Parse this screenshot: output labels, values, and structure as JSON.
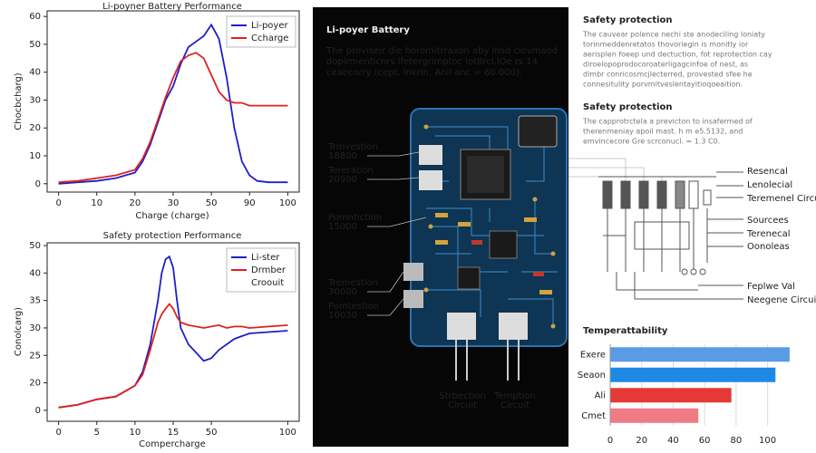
{
  "chart_data": [
    {
      "type": "line",
      "title": "Li-poyner Battery Performance",
      "xlabel": "Charge (charge)",
      "ylabel": "Chocbcharg)",
      "x": [
        0,
        5,
        10,
        15,
        20,
        22,
        24,
        26,
        28,
        30,
        32,
        34,
        36,
        38,
        40,
        42,
        44,
        46,
        48,
        50,
        52,
        55,
        60
      ],
      "series": [
        {
          "name": "Li-poyer",
          "color": "#1f1fc8",
          "values": [
            0,
            0.5,
            1,
            2,
            4,
            8,
            14,
            22,
            30,
            35,
            43,
            49,
            51,
            53,
            57,
            52,
            38,
            20,
            8,
            3,
            1,
            0.5,
            0.5
          ]
        },
        {
          "name": "Ccharge",
          "color": "#e02020",
          "values": [
            0.5,
            1,
            2,
            3,
            5,
            9,
            15,
            23,
            31,
            38,
            44,
            46,
            47,
            45,
            39,
            33,
            30,
            29,
            29,
            28,
            28,
            28,
            28
          ]
        }
      ],
      "xlim": [
        -3,
        63
      ],
      "ylim": [
        -3,
        62
      ],
      "xticks": [
        0,
        10,
        20,
        30,
        {
          "value": 40,
          "label": "50"
        },
        {
          "value": 50,
          "label": "90"
        },
        {
          "value": 60,
          "label": "100"
        }
      ],
      "yticks": [
        0,
        10,
        20,
        30,
        40,
        50,
        60
      ],
      "legend": "upper right"
    },
    {
      "type": "line",
      "title": "Safety protection Performance",
      "xlabel": "Compercharge",
      "ylabel": "Conolcarg)",
      "x": [
        0,
        5,
        10,
        15,
        20,
        22,
        24,
        26,
        27,
        28,
        29,
        30,
        31,
        32,
        34,
        36,
        38,
        40,
        42,
        44,
        46,
        48,
        50,
        55,
        60
      ],
      "series": [
        {
          "name": "Li-ster",
          "color": "#1f1fc8",
          "values": [
            1,
            2,
            4,
            5,
            9,
            14,
            24,
            40,
            50,
            55,
            56,
            52,
            40,
            30,
            24,
            21,
            18,
            19,
            22,
            24,
            26,
            27,
            28,
            28.5,
            29
          ]
        },
        {
          "name": "Drmber",
          "color": "#e02020",
          "values": [
            1,
            2,
            4,
            5,
            9,
            13,
            22,
            32,
            35,
            37,
            38.7,
            37,
            34,
            32,
            31,
            30.5,
            30,
            30.5,
            31,
            30,
            30.5,
            30.5,
            30,
            30.5,
            31
          ]
        }
      ],
      "legend_extra": "Croouit",
      "xlim": [
        -3,
        63
      ],
      "ylim": [
        -4,
        61
      ],
      "xticks": [
        0,
        {
          "value": 10,
          "label": "5"
        },
        {
          "value": 20,
          "label": "10"
        },
        {
          "value": 30,
          "label": "15"
        },
        {
          "value": 40,
          "label": "50"
        },
        {
          "value": 60,
          "label": "100"
        }
      ],
      "yticks": [
        0,
        {
          "value": 10,
          "label": "20"
        },
        {
          "value": 20,
          "label": "25"
        },
        {
          "value": 30,
          "label": "30"
        },
        {
          "value": 40,
          "label": "35"
        },
        {
          "value": 50,
          "label": "40"
        },
        {
          "value": 60,
          "label": "50"
        }
      ],
      "legend": "upper right"
    },
    {
      "type": "bar",
      "orientation": "horizontal",
      "title": "Temperattability",
      "categories": [
        "Exere",
        "Seaon",
        "Ali",
        "Cmet"
      ],
      "values": [
        114,
        105,
        77,
        56
      ],
      "colors": [
        "#5a9be6",
        "#1e88e5",
        "#e53935",
        "#ef7b84"
      ],
      "xlim": [
        0,
        125
      ],
      "xticks": [
        0,
        20,
        40,
        60,
        80,
        100
      ],
      "grid": true
    }
  ],
  "board": {
    "title": "Li-poyer Battery",
    "text": [
      "The proviseir die horomitrraxon aby lnsd clovmaod",
      "dopirmenticnrs lfetergrimptoc lot8rcl.lOe rs 14",
      "ceaecorry (cept, lnkrin, Anil anc = 60 000)."
    ],
    "labels": [
      [
        "Trmvestion",
        "18800"
      ],
      [
        "Tereration",
        "20900"
      ],
      [
        "Pomntiction",
        "15000"
      ],
      [
        "Tremestion",
        "30000"
      ],
      [
        "Pomtestion",
        "10030"
      ]
    ],
    "bottom_labels": [
      [
        "Strbection",
        "Circuit"
      ],
      [
        "Temption",
        "Circuit"
      ]
    ]
  },
  "safety": [
    {
      "title": "Safety protection",
      "text": [
        "The cauvear polence nechi ste anodeciling loniaty",
        "torinmeddenretatos thovoriegin is monitly ior",
        "aerisplen foeep und dectuction, fot reprotection cay",
        "diroelopoprodocoroaterligagcinfoe of nest, as",
        "dimbr conricosmcjlecterred, provested sfee he",
        "connesitulity porvmitveslentayitioqoeaition."
      ]
    },
    {
      "title": "Safety protection",
      "text": [
        "The capprotrctela a previcton to insafermed of",
        "therenmeniay apoil mast. h m e5.5132, and",
        "emvincecore Gre scrconucl. = 1.3 C0."
      ]
    }
  ],
  "schematic_labels": [
    "Resencal",
    "Lenolecial",
    "Teremenel Circuit",
    "Sourcees",
    "Terenecal",
    "Oonoleas",
    "Feplwe Val",
    "Neegene Circuit"
  ]
}
